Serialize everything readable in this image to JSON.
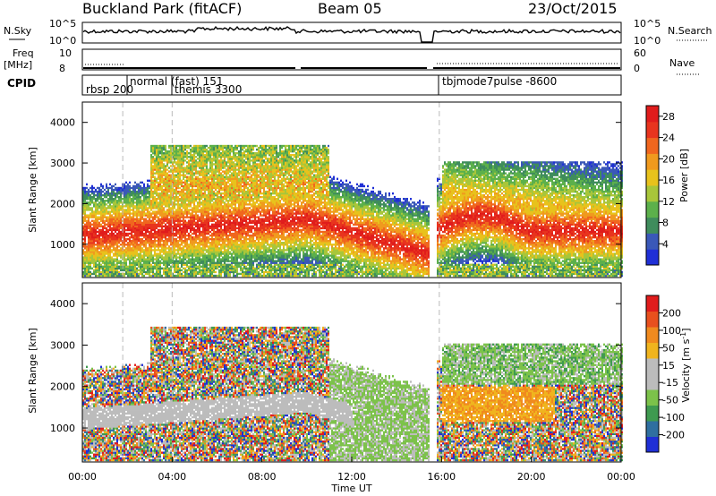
{
  "header": {
    "station": "Buckland Park (fitACF)",
    "beam": "Beam 05",
    "date": "23/Oct/2015"
  },
  "strip": {
    "nsky_label": "N.Sky",
    "nsearch_label": "N.Search",
    "nsky_ticks": [
      "10^5",
      "10^0"
    ],
    "nsky_right_ticks": [
      "10^5",
      "10^0"
    ],
    "freq_label": "Freq",
    "freq_unit": "[MHz]",
    "freq_ticks": [
      "10",
      "8"
    ],
    "nave_label": "Nave",
    "nave_ticks": [
      "60",
      "0"
    ],
    "cpid_label": "CPID",
    "cpid_segments": [
      {
        "text": "rbsp 200",
        "start": 0.0
      },
      {
        "text": "normal (fast) 151",
        "start": 1.8
      },
      {
        "text": "themis 3300",
        "start": 4.0
      },
      {
        "text": "tbjmode7pulse -8600",
        "start": 15.9
      }
    ]
  },
  "chart_data": [
    {
      "type": "heatmap",
      "name": "power",
      "ylabel": "Slant Range [km]",
      "xlabel": "",
      "y_ticks": [
        "1000",
        "2000",
        "3000",
        "4000"
      ],
      "ylim": [
        180,
        4500
      ],
      "xlim": [
        0,
        24
      ],
      "colorbar": {
        "label": "Power [dB]",
        "ticks": [
          "4",
          "8",
          "12",
          "16",
          "20",
          "24",
          "28"
        ],
        "range": [
          0,
          30
        ],
        "colors": [
          "#1f2fd6",
          "#3a58b8",
          "#3f8c5c",
          "#5cb04b",
          "#a8c63a",
          "#e8c21c",
          "#f09a1e",
          "#f0661e",
          "#e8341e",
          "#e01c1c"
        ]
      }
    },
    {
      "type": "heatmap",
      "name": "velocity",
      "ylabel": "Slant Range [km]",
      "xlabel": "Time UT",
      "y_ticks": [
        "1000",
        "2000",
        "3000",
        "4000"
      ],
      "x_ticks": [
        "00:00",
        "04:00",
        "08:00",
        "12:00",
        "16:00",
        "20:00",
        "00:00"
      ],
      "ylim": [
        180,
        4500
      ],
      "xlim": [
        0,
        24
      ],
      "colorbar": {
        "label": "Velocity [m s",
        "label_sup": "-1",
        "label_end": "]",
        "ticks": [
          "200",
          "100",
          "50",
          "15",
          "-15",
          "-50",
          "-100",
          "-200"
        ],
        "colors": [
          "#1f2fd6",
          "#2f6fa0",
          "#3f9a50",
          "#7cc24a",
          "#bcbcbc",
          "#bcbcbc",
          "#f0b41e",
          "#f08a1e",
          "#e8501e",
          "#e01c1c"
        ]
      }
    }
  ]
}
